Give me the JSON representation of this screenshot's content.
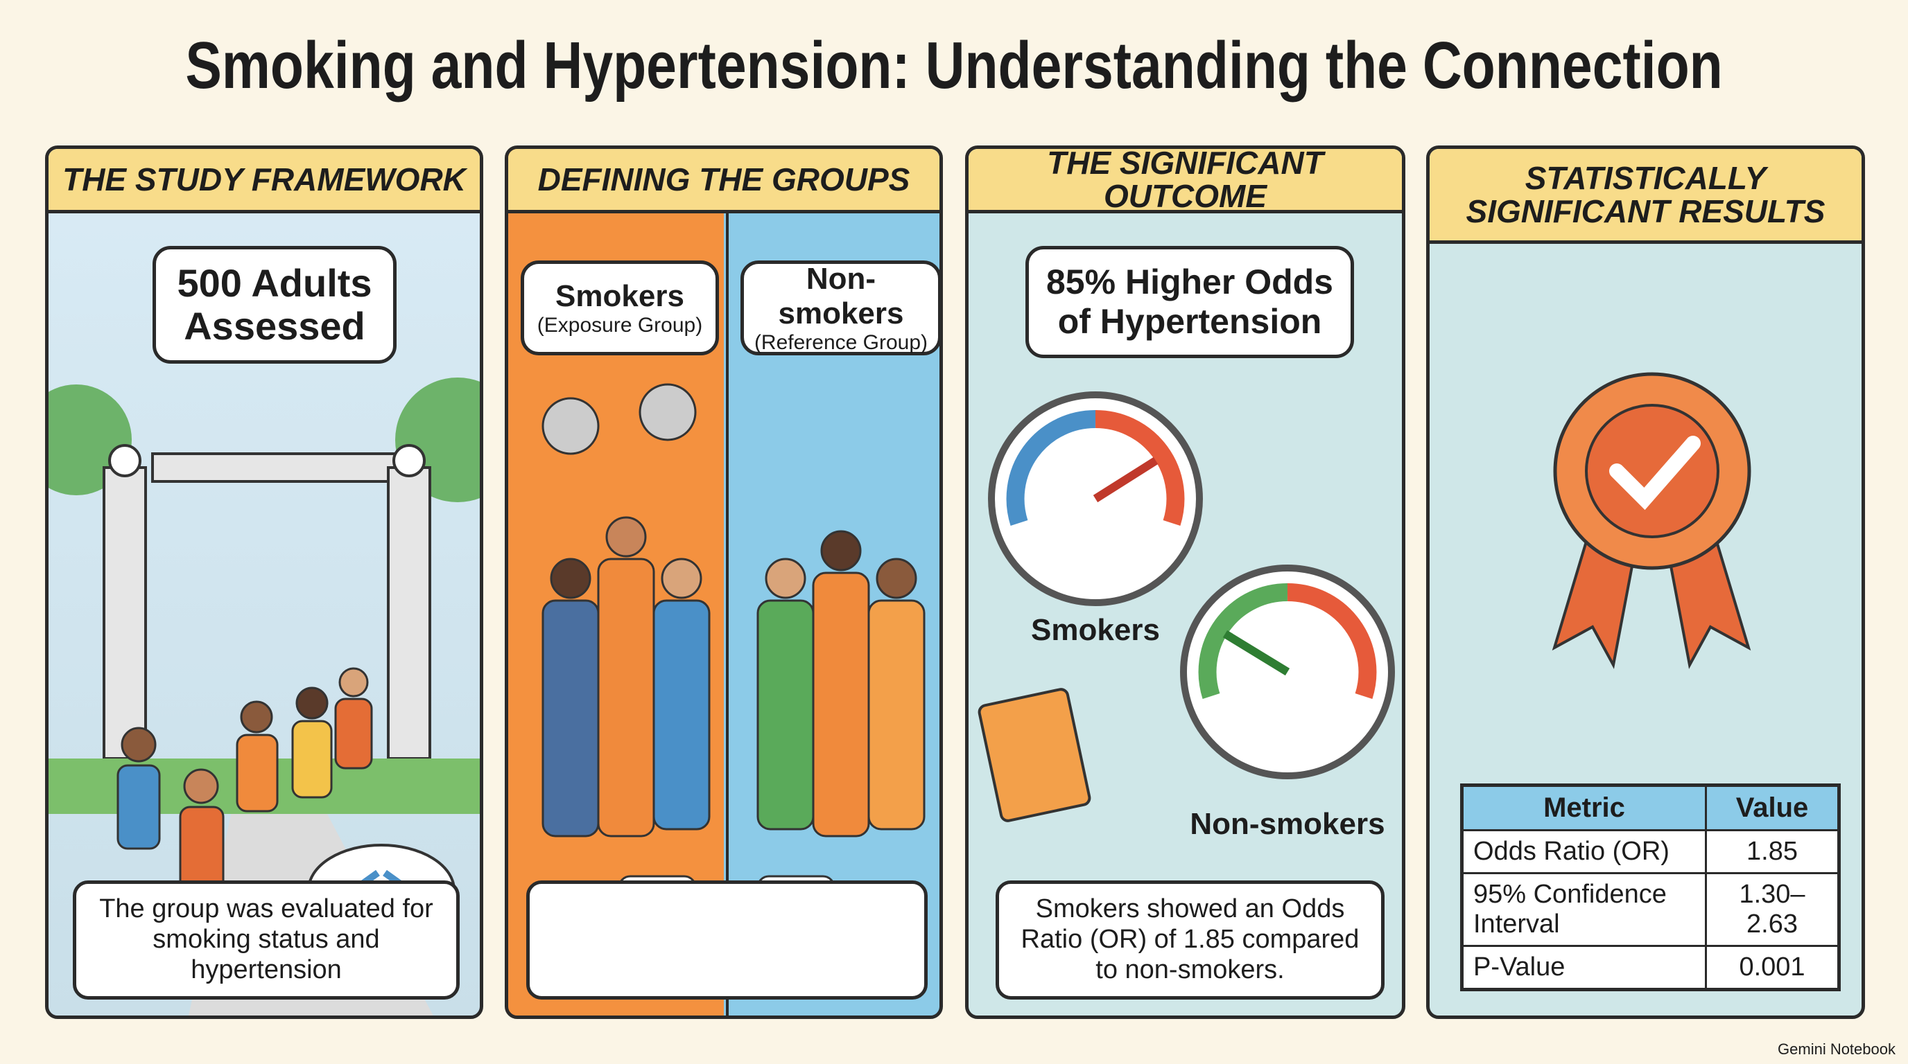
{
  "title": "Smoking and Hypertension: Understanding the Connection",
  "panels": [
    {
      "heading": "THE STUDY FRAMEWORK",
      "bubble": "500 Adults Assessed",
      "caption": "The group was evaluated for smoking status and hypertension"
    },
    {
      "heading": "DEFINING THE GROUPS",
      "groups": [
        {
          "label": "Smokers",
          "sublabel": "(Exposure Group)"
        },
        {
          "label": "Non-smokers",
          "sublabel": "(Reference Group)"
        }
      ]
    },
    {
      "heading": "THE SIGNIFICANT OUTCOME",
      "bubble": "85% Higher Odds of Hypertension",
      "gauges": [
        "Smokers",
        "Non-smokers"
      ],
      "caption": "Smokers showed an Odds Ratio (OR) of 1.85 compared to non-smokers."
    },
    {
      "heading": "STATISTICALLY SIGNIFICANT RESULTS",
      "table": {
        "header": [
          "Metric",
          "Value"
        ],
        "rows": [
          [
            "Odds Ratio (OR)",
            "1.85"
          ],
          [
            "95% Confidence Interval",
            "1.30–2.63"
          ],
          [
            "P-Value",
            "0.001"
          ]
        ]
      }
    }
  ],
  "footer": "Gemini Notebook"
}
